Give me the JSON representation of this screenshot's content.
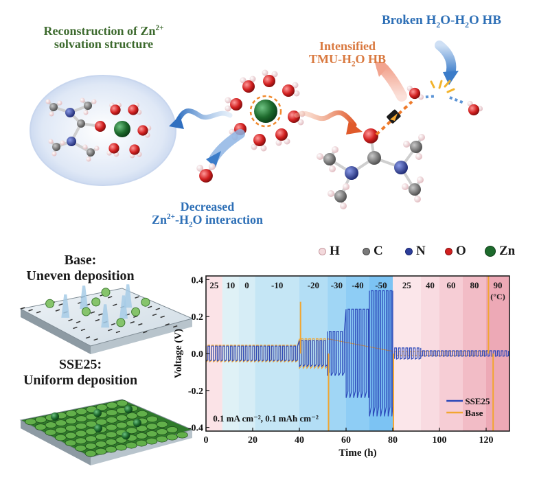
{
  "labels": {
    "reconstruction_line1": "Reconstruction of Zn",
    "reconstruction_sup": "2+",
    "reconstruction_line2": "solvation structure",
    "broken_hb_pre": "Broken H",
    "broken_hb_sub1": "2",
    "broken_hb_mid": "O-H",
    "broken_hb_sub2": "2",
    "broken_hb_post": "O HB",
    "intensified_line1": "Intensified",
    "intensified_line2_pre": "TMU-H",
    "intensified_sub": "2",
    "intensified_line2_post": "O HB",
    "decreased_line1": "Decreased",
    "decreased_line2_pre": "Zn",
    "decreased_sup": "2+",
    "decreased_line2_mid": "-H",
    "decreased_sub": "2",
    "decreased_line2_post": "O interaction"
  },
  "legend": [
    {
      "symbol": "H",
      "color": "#f3d9dc",
      "border": "#c79aa0"
    },
    {
      "symbol": "C",
      "color": "#7a7a7a",
      "border": "#444444"
    },
    {
      "symbol": "N",
      "color": "#2c3d9a",
      "border": "#1a2670"
    },
    {
      "symbol": "O",
      "color": "#d11f1f",
      "border": "#8a1010"
    },
    {
      "symbol": "Zn",
      "color": "#1d6a2c",
      "border": "#0e3d18"
    }
  ],
  "panels": {
    "base_line1": "Base:",
    "base_line2": "Uneven deposition",
    "sse_line1": "SSE25:",
    "sse_line2": "Uniform deposition"
  },
  "chart_data": {
    "type": "line",
    "xlabel": "Time (h)",
    "ylabel": "Voltage (V)",
    "xlim": [
      0,
      130
    ],
    "ylim": [
      -0.42,
      0.42
    ],
    "xticks": [
      0,
      20,
      40,
      60,
      80,
      100,
      120
    ],
    "yticks": [
      -0.4,
      -0.2,
      0.0,
      0.2,
      0.4
    ],
    "ytick_labels": [
      "-0.4",
      "-0.2",
      "0.0",
      "0.2",
      "0.4"
    ],
    "annotation": "0.1 mA cm⁻²,  0.1 mAh cm⁻²",
    "unit_label": "(°C)",
    "temperature_bands": [
      {
        "label": "25",
        "x_start": 0,
        "x_end": 7,
        "color": "#fbe3e7"
      },
      {
        "label": "10",
        "x_start": 7,
        "x_end": 14,
        "color": "#dff1f6"
      },
      {
        "label": "0",
        "x_start": 14,
        "x_end": 21,
        "color": "#d6edf6"
      },
      {
        "label": "-10",
        "x_start": 21,
        "x_end": 40,
        "color": "#c5e6f5"
      },
      {
        "label": "-20",
        "x_start": 40,
        "x_end": 52,
        "color": "#b3def5"
      },
      {
        "label": "-30",
        "x_start": 52,
        "x_end": 60,
        "color": "#a0d6f5"
      },
      {
        "label": "-40",
        "x_start": 60,
        "x_end": 70,
        "color": "#8ecdf5"
      },
      {
        "label": "-50",
        "x_start": 70,
        "x_end": 80,
        "color": "#7cc3f3"
      },
      {
        "label": "25",
        "x_start": 80,
        "x_end": 92,
        "color": "#fbe6ea"
      },
      {
        "label": "40",
        "x_start": 92,
        "x_end": 100,
        "color": "#f9dbe1"
      },
      {
        "label": "60",
        "x_start": 100,
        "x_end": 110,
        "color": "#f6cdd5"
      },
      {
        "label": "80",
        "x_start": 110,
        "x_end": 120,
        "color": "#f2bcc6"
      },
      {
        "label": "90",
        "x_start": 120,
        "x_end": 130,
        "color": "#eda9b6"
      }
    ],
    "series": [
      {
        "name": "SSE25",
        "color": "#2a46b8",
        "segments": [
          {
            "x_start": 0,
            "x_end": 40,
            "amp": 0.04
          },
          {
            "x_start": 40,
            "x_end": 52,
            "amp": 0.07
          },
          {
            "x_start": 52,
            "x_end": 60,
            "amp": 0.12
          },
          {
            "x_start": 60,
            "x_end": 70,
            "amp": 0.24
          },
          {
            "x_start": 70,
            "x_end": 80,
            "amp": 0.34
          },
          {
            "x_start": 80,
            "x_end": 92,
            "amp": 0.03
          },
          {
            "x_start": 92,
            "x_end": 130,
            "amp": 0.015
          }
        ]
      },
      {
        "name": "Base",
        "color": "#f2a630",
        "segments": [
          {
            "x_start": 0,
            "x_end": 40,
            "amp": 0.045
          },
          {
            "x_start": 40,
            "x_end": 52,
            "amp": 0.08
          },
          {
            "x_start": 80,
            "x_end": 120,
            "amp": 0.012
          }
        ],
        "spikes": [
          {
            "x": 40.5,
            "y": 0.28
          },
          {
            "x": 52.5,
            "y": -0.42
          },
          {
            "x": 80.3,
            "y": -0.42
          },
          {
            "x": 121,
            "y": 0.42
          },
          {
            "x": 123,
            "y": -0.42
          }
        ]
      }
    ]
  }
}
